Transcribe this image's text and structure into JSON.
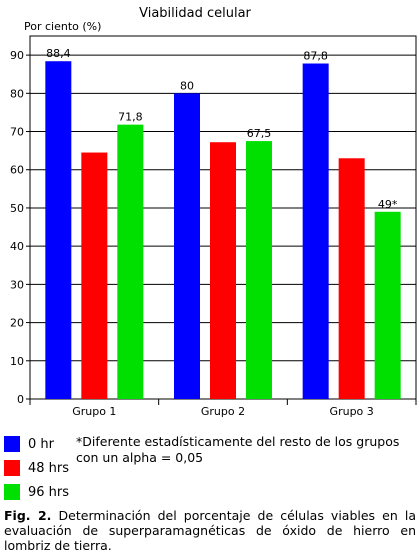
{
  "chart_data": {
    "type": "bar",
    "title": "Viabilidad celular",
    "ylabel": "Por ciento (%)",
    "xlabel": "",
    "ylim": [
      0,
      95
    ],
    "yticks": [
      0,
      10,
      20,
      30,
      40,
      50,
      60,
      70,
      80,
      90
    ],
    "grid": true,
    "categories": [
      "Grupo 1",
      "Grupo 2",
      "Grupo 3"
    ],
    "series": [
      {
        "name": "0 hr",
        "color": "#0000ff",
        "values": [
          88.4,
          80,
          87.8
        ],
        "labels": [
          "88,4",
          "80",
          "87,8"
        ]
      },
      {
        "name": "48 hrs",
        "color": "#ff0000",
        "values": [
          64.5,
          67.2,
          63
        ],
        "labels": [
          "",
          "",
          ""
        ]
      },
      {
        "name": "96 hrs",
        "color": "#00e000",
        "values": [
          71.8,
          67.5,
          49
        ],
        "labels": [
          "71,8",
          "67,5",
          "49*"
        ]
      }
    ]
  },
  "note": "*Diferente estadísticamente del resto de los grupos con un alpha = 0,05",
  "caption": {
    "label": "Fig. 2.",
    "text": "Determinación del porcentaje de células viables en la evaluación de superparamagnéticas de óxido de hierro en lombriz de tierra."
  }
}
